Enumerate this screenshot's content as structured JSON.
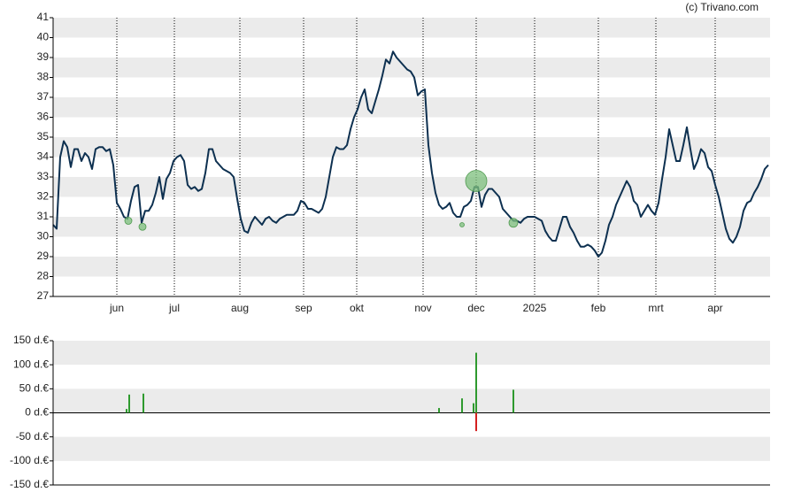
{
  "chart_data": [
    {
      "type": "line",
      "watermark": "(c) Trivano.com",
      "color": "#0d3050",
      "xlim": [
        0,
        202.5
      ],
      "ylim": [
        27,
        41
      ],
      "xticks": [
        {
          "value": 18,
          "label": "jun"
        },
        {
          "value": 34.25,
          "label": "jul"
        },
        {
          "value": 52.75,
          "label": "aug"
        },
        {
          "value": 70.75,
          "label": "sep"
        },
        {
          "value": 85.75,
          "label": "okt"
        },
        {
          "value": 104.5,
          "label": "nov"
        },
        {
          "value": 119.5,
          "label": "dec"
        },
        {
          "value": 136,
          "label": "2025"
        },
        {
          "value": 154,
          "label": "feb"
        },
        {
          "value": 170.25,
          "label": "mrt"
        },
        {
          "value": 187,
          "label": "apr"
        }
      ],
      "yticks": [
        27,
        28,
        29,
        30,
        31,
        32,
        33,
        34,
        35,
        36,
        37,
        38,
        39,
        40,
        41
      ],
      "banded": true,
      "x": [
        0,
        1,
        2,
        3,
        4,
        5,
        6,
        7,
        8,
        9,
        10,
        11,
        12,
        13,
        14,
        15,
        16,
        17,
        18,
        19,
        20,
        21,
        22,
        23,
        24,
        25,
        26,
        27,
        28,
        29,
        30,
        31,
        32,
        33,
        34,
        35,
        36,
        37,
        38,
        39,
        40,
        41,
        42,
        43,
        44,
        45,
        46,
        47,
        48,
        49,
        50,
        51,
        52,
        53,
        54,
        55,
        56,
        57,
        58,
        59,
        60,
        61,
        62,
        63,
        64,
        65,
        66,
        67,
        68,
        69,
        70,
        71,
        72,
        73,
        74,
        75,
        76,
        77,
        78,
        79,
        80,
        81,
        82,
        83,
        84,
        85,
        86,
        87,
        88,
        89,
        90,
        91,
        92,
        93,
        94,
        95,
        96,
        97,
        98,
        99,
        100,
        101,
        102,
        103,
        104,
        105,
        106,
        107,
        108,
        109,
        110,
        111,
        112,
        113,
        114,
        115,
        116,
        117,
        118,
        119,
        120,
        121,
        122,
        123,
        124,
        125,
        126,
        127,
        128,
        129,
        130,
        131,
        132,
        133,
        134,
        135,
        136,
        137,
        138,
        139,
        140,
        141,
        142,
        143,
        144,
        145,
        146,
        147,
        148,
        149,
        150,
        151,
        152,
        153,
        154,
        155,
        156,
        157,
        158,
        159,
        160,
        161,
        162,
        163,
        164,
        165,
        166,
        167,
        168,
        169,
        170,
        171,
        172,
        173,
        174,
        175,
        176,
        177,
        178,
        179,
        180,
        181,
        182,
        183,
        184,
        185,
        186,
        187,
        188,
        189,
        190,
        191,
        192,
        193,
        194,
        195,
        196,
        197,
        198,
        199,
        200,
        201,
        202
      ],
      "values": [
        30.6,
        30.4,
        34.0,
        34.8,
        34.5,
        33.5,
        34.4,
        34.4,
        33.8,
        34.2,
        34.0,
        33.4,
        34.4,
        34.5,
        34.5,
        34.3,
        34.4,
        33.6,
        31.7,
        31.4,
        31.0,
        30.9,
        31.8,
        32.5,
        32.6,
        30.7,
        31.3,
        31.3,
        31.6,
        32.2,
        33.0,
        31.9,
        32.9,
        33.2,
        33.8,
        34.0,
        34.1,
        33.8,
        32.6,
        32.4,
        32.5,
        32.3,
        32.4,
        33.2,
        34.4,
        34.4,
        33.8,
        33.6,
        33.4,
        33.3,
        33.2,
        33.0,
        31.9,
        30.9,
        30.3,
        30.2,
        30.7,
        31.0,
        30.8,
        30.6,
        30.9,
        31.0,
        30.8,
        30.7,
        30.9,
        31.0,
        31.1,
        31.1,
        31.1,
        31.3,
        31.8,
        31.7,
        31.4,
        31.4,
        31.3,
        31.2,
        31.4,
        32.0,
        33.0,
        34.0,
        34.5,
        34.4,
        34.4,
        34.6,
        35.4,
        36.0,
        36.4,
        37.0,
        37.4,
        36.4,
        36.2,
        36.8,
        37.4,
        38.1,
        38.9,
        38.7,
        39.3,
        39.0,
        38.8,
        38.6,
        38.4,
        38.3,
        38.0,
        37.1,
        37.3,
        37.4,
        34.6,
        33.2,
        32.2,
        31.6,
        31.4,
        31.5,
        31.7,
        31.2,
        31.0,
        31.0,
        31.5,
        31.6,
        31.8,
        32.5,
        32.5,
        31.5,
        32.1,
        32.4,
        32.4,
        32.2,
        32.0,
        31.4,
        31.2,
        31.0,
        30.8,
        30.8,
        30.7,
        30.9,
        31.0,
        31.0,
        31.0,
        30.9,
        30.8,
        30.3,
        30.0,
        29.8,
        29.8,
        30.4,
        31.0,
        31.0,
        30.5,
        30.2,
        29.8,
        29.5,
        29.5,
        29.6,
        29.5,
        29.3,
        29.0,
        29.2,
        29.8,
        30.6,
        31.0,
        31.6,
        32.0,
        32.4,
        32.8,
        32.5,
        31.8,
        31.6,
        31.0,
        31.3,
        31.6,
        31.3,
        31.1,
        31.7,
        32.9,
        34.0,
        35.4,
        34.6,
        33.8,
        33.8,
        34.6,
        35.5,
        34.4,
        33.4,
        33.8,
        34.4,
        34.2,
        33.5,
        33.3,
        32.6,
        32.0,
        31.2,
        30.4,
        29.9,
        29.7,
        30.0,
        30.5,
        31.3,
        31.7,
        31.8,
        32.2,
        32.5,
        32.9,
        33.4,
        33.6
      ],
      "markers": {
        "color": "#7cbf7c",
        "x": [
          21.25,
          25.25,
          115.5,
          119.5,
          130
        ],
        "values": [
          30.8,
          30.5,
          30.6,
          32.8,
          30.7
        ],
        "size": [
          4,
          4,
          2.5,
          12,
          5
        ]
      }
    },
    {
      "type": "bar",
      "xlim": [
        0,
        202.5
      ],
      "ylim": [
        -150,
        150
      ],
      "banded": true,
      "yticks": [
        {
          "value": -150,
          "label": "-150 d.€"
        },
        {
          "value": -100,
          "label": "-100 d.€"
        },
        {
          "value": -50,
          "label": "-50 d.€"
        },
        {
          "value": 0,
          "label": "0 d.€"
        },
        {
          "value": 50,
          "label": "50 d.€"
        },
        {
          "value": 100,
          "label": "100 d.€"
        },
        {
          "value": 150,
          "label": "150 d.€"
        }
      ],
      "x": [
        20.75,
        21.5,
        25.5,
        109,
        115.5,
        118.75,
        119.5,
        119.5,
        130
      ],
      "values": [
        8,
        38,
        40,
        10,
        30,
        20,
        125,
        -38,
        48
      ],
      "colors": [
        "#2e9a2e",
        "#2e9a2e",
        "#2e9a2e",
        "#2e9a2e",
        "#2e9a2e",
        "#2e9a2e",
        "#2e9a2e",
        "#d42020",
        "#2e9a2e"
      ]
    }
  ]
}
